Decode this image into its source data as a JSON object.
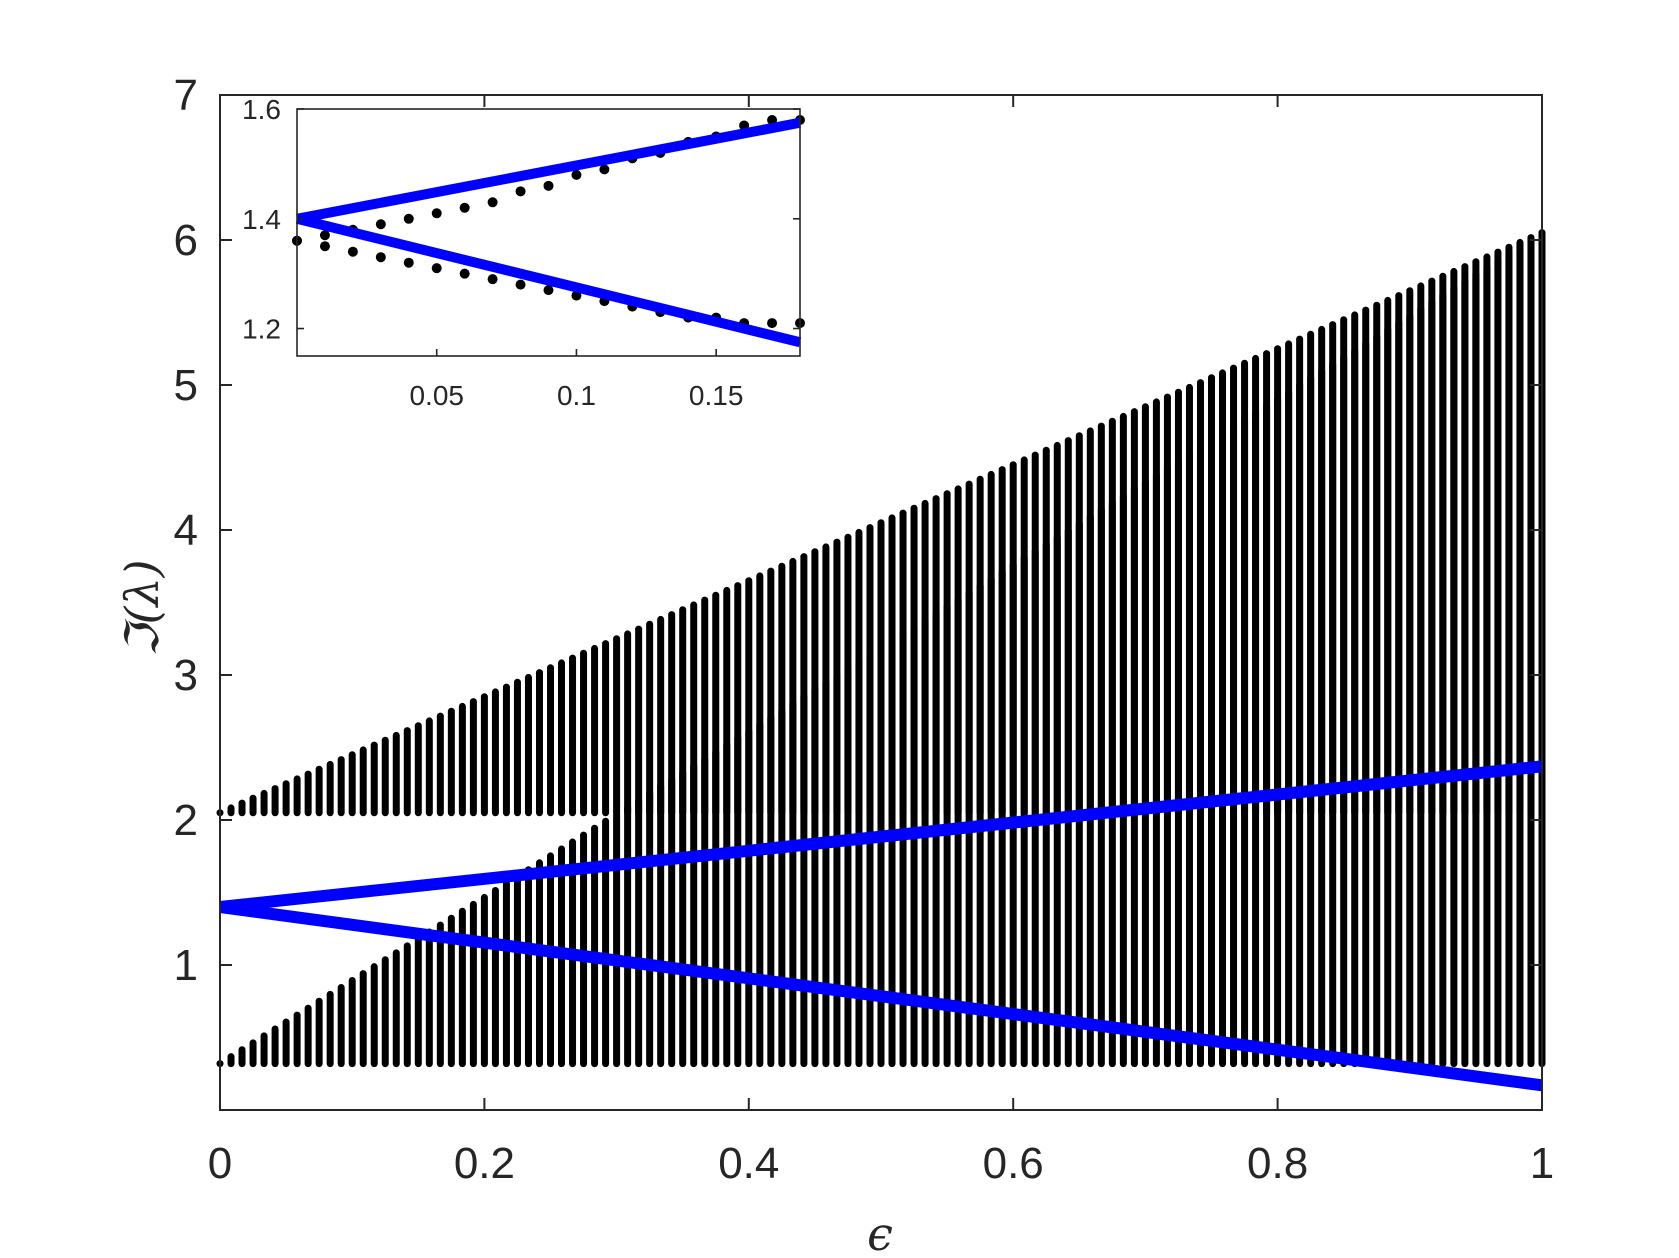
{
  "chart_data": [
    {
      "type": "scatter",
      "role": "main",
      "title": "",
      "xlabel": "ϵ",
      "ylabel": "ℑ(λ)",
      "xlim": [
        0,
        1
      ],
      "ylim": [
        0,
        7
      ],
      "xticks": [
        0,
        0.2,
        0.4,
        0.6,
        0.8,
        1
      ],
      "xtick_labels": [
        "0",
        "0.2",
        "0.4",
        "0.6",
        "0.8",
        "1"
      ],
      "yticks": [
        1,
        2,
        3,
        4,
        5,
        6,
        7
      ],
      "ytick_labels": [
        "1",
        "2",
        "3",
        "4",
        "5",
        "6",
        "7"
      ],
      "grid": false,
      "box": true,
      "eigenvalue_bands": [
        {
          "x_range": [
            0,
            1
          ],
          "y_bottom_at_x0": 2.05,
          "y_bottom_at_x1": 2.05,
          "y_top_at_x0": 2.05,
          "y_top_at_x1": 6.05,
          "x_step": 0.008333
        },
        {
          "x_range": [
            0,
            1
          ],
          "y_bottom_at_x0": 0.32,
          "y_bottom_at_x1": 0.32,
          "y_top_at_x0": 0.32,
          "y_top_at_x1": 6.05,
          "x_step": 0.008333
        }
      ],
      "series": [
        {
          "type": "line",
          "x": [
            0,
            1
          ],
          "y": [
            1.4,
            2.37
          ],
          "color": "#0000ff"
        },
        {
          "type": "line",
          "x": [
            0,
            1
          ],
          "y": [
            1.4,
            0.17
          ],
          "color": "#0000ff"
        }
      ],
      "colors": {
        "points": "#000000",
        "lines": "#0000ff",
        "axes": "#262626"
      }
    },
    {
      "type": "scatter",
      "role": "inset",
      "title": "",
      "xlim": [
        0,
        0.18
      ],
      "ylim": [
        1.15,
        1.6
      ],
      "xticks": [
        0.05,
        0.1,
        0.15
      ],
      "xtick_labels": [
        "0.05",
        "0.1",
        "0.15"
      ],
      "yticks": [
        1.2,
        1.4,
        1.6
      ],
      "ytick_labels": [
        "1.2",
        "1.4",
        "1.6"
      ],
      "series": [
        {
          "type": "points",
          "x": [
            0,
            0.01,
            0.02,
            0.03,
            0.04,
            0.05,
            0.06,
            0.07,
            0.08,
            0.09,
            0.1,
            0.11,
            0.12,
            0.13,
            0.14,
            0.15,
            0.16,
            0.17,
            0.18
          ],
          "y": [
            1.36,
            1.37,
            1.38,
            1.39,
            1.4,
            1.41,
            1.42,
            1.43,
            1.45,
            1.46,
            1.48,
            1.49,
            1.51,
            1.52,
            1.54,
            1.55,
            1.57,
            1.58,
            1.58
          ]
        },
        {
          "type": "points",
          "x": [
            0,
            0.01,
            0.02,
            0.03,
            0.04,
            0.05,
            0.06,
            0.07,
            0.08,
            0.09,
            0.1,
            0.11,
            0.12,
            0.13,
            0.14,
            0.15,
            0.16,
            0.17,
            0.18
          ],
          "y": [
            1.36,
            1.35,
            1.34,
            1.33,
            1.32,
            1.31,
            1.3,
            1.29,
            1.28,
            1.27,
            1.26,
            1.25,
            1.24,
            1.23,
            1.22,
            1.22,
            1.21,
            1.21,
            1.21
          ]
        },
        {
          "type": "line",
          "x": [
            0,
            0.18
          ],
          "y": [
            1.4,
            1.575
          ],
          "color": "#0000ff"
        },
        {
          "type": "line",
          "x": [
            0,
            0.18
          ],
          "y": [
            1.4,
            1.175
          ],
          "color": "#0000ff"
        }
      ]
    }
  ]
}
